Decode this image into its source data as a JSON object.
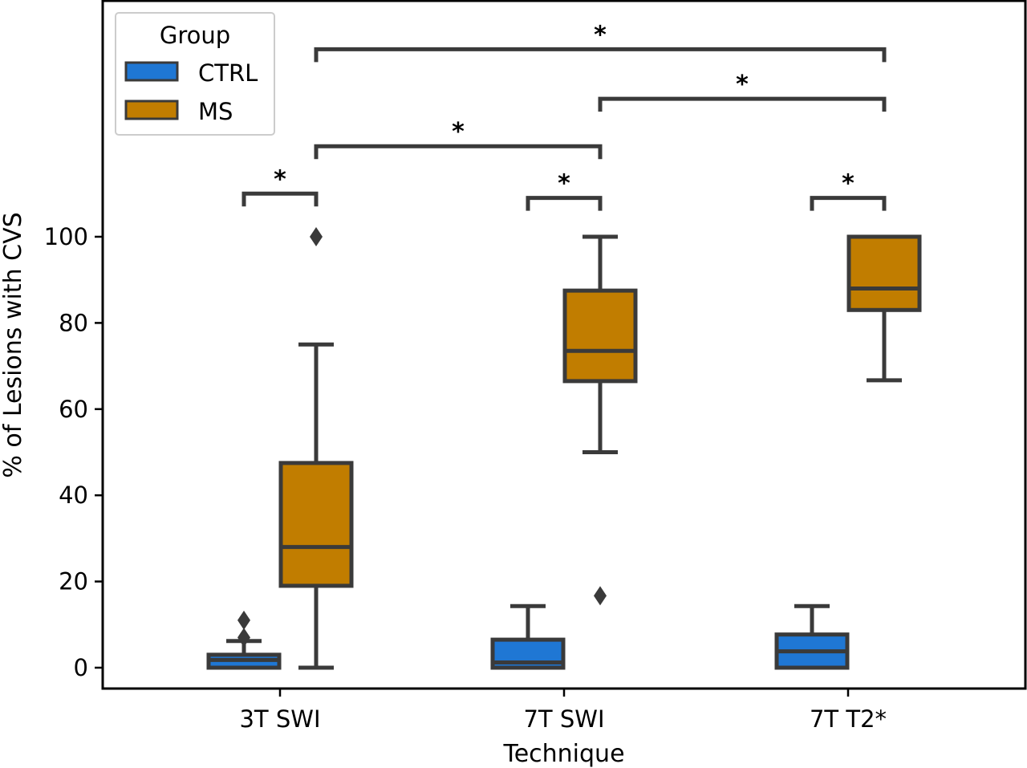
{
  "chart_data": {
    "type": "box",
    "xlabel": "Technique",
    "ylabel": "% of Lesions with CVS",
    "categories": [
      "3T SWI",
      "7T SWI",
      "7T T2*"
    ],
    "yticks": [
      0,
      20,
      40,
      60,
      80,
      100
    ],
    "ylim": [
      -5,
      155
    ],
    "legend": {
      "title": "Group",
      "position": "top-left",
      "entries": [
        {
          "label": "CTRL",
          "color": "#1f77d4"
        },
        {
          "label": "MS",
          "color": "#c17d00"
        }
      ]
    },
    "series": [
      {
        "name": "CTRL",
        "color": "#1f77d4",
        "boxes": [
          {
            "category": "3T SWI",
            "whislo": 0,
            "q1": 0,
            "median": 1.8,
            "q3": 3,
            "whishi": 6.2,
            "fliers": [
              7,
              11
            ]
          },
          {
            "category": "7T SWI",
            "whislo": 0,
            "q1": 0,
            "median": 1.2,
            "q3": 6.5,
            "whishi": 14.3,
            "fliers": []
          },
          {
            "category": "7T T2*",
            "whislo": 0,
            "q1": 0,
            "median": 3.8,
            "q3": 7.7,
            "whishi": 14.3,
            "fliers": []
          }
        ]
      },
      {
        "name": "MS",
        "color": "#c17d00",
        "boxes": [
          {
            "category": "3T SWI",
            "whislo": 0,
            "q1": 19,
            "median": 28,
            "q3": 47.5,
            "whishi": 75,
            "fliers": [
              100
            ]
          },
          {
            "category": "7T SWI",
            "whislo": 50,
            "q1": 66.5,
            "median": 73.5,
            "q3": 87.5,
            "whishi": 100,
            "fliers": [
              16.7
            ]
          },
          {
            "category": "7T T2*",
            "whislo": 66.7,
            "q1": 83,
            "median": 88,
            "q3": 100,
            "whishi": 100,
            "fliers": []
          }
        ]
      }
    ],
    "significance": [
      {
        "from": [
          "3T SWI",
          "CTRL"
        ],
        "to": [
          "3T SWI",
          "MS"
        ],
        "y": 110,
        "label": "*"
      },
      {
        "from": [
          "7T SWI",
          "CTRL"
        ],
        "to": [
          "7T SWI",
          "MS"
        ],
        "y": 109,
        "label": "*"
      },
      {
        "from": [
          "7T T2*",
          "CTRL"
        ],
        "to": [
          "7T T2*",
          "MS"
        ],
        "y": 109,
        "label": "*"
      },
      {
        "from": [
          "3T SWI",
          "MS"
        ],
        "to": [
          "7T SWI",
          "MS"
        ],
        "y": 121,
        "label": "*"
      },
      {
        "from": [
          "7T SWI",
          "MS"
        ],
        "to": [
          "7T T2*",
          "MS"
        ],
        "y": 132,
        "label": "*"
      },
      {
        "from": [
          "3T SWI",
          "MS"
        ],
        "to": [
          "7T T2*",
          "MS"
        ],
        "y": 143.5,
        "label": "*"
      }
    ]
  }
}
